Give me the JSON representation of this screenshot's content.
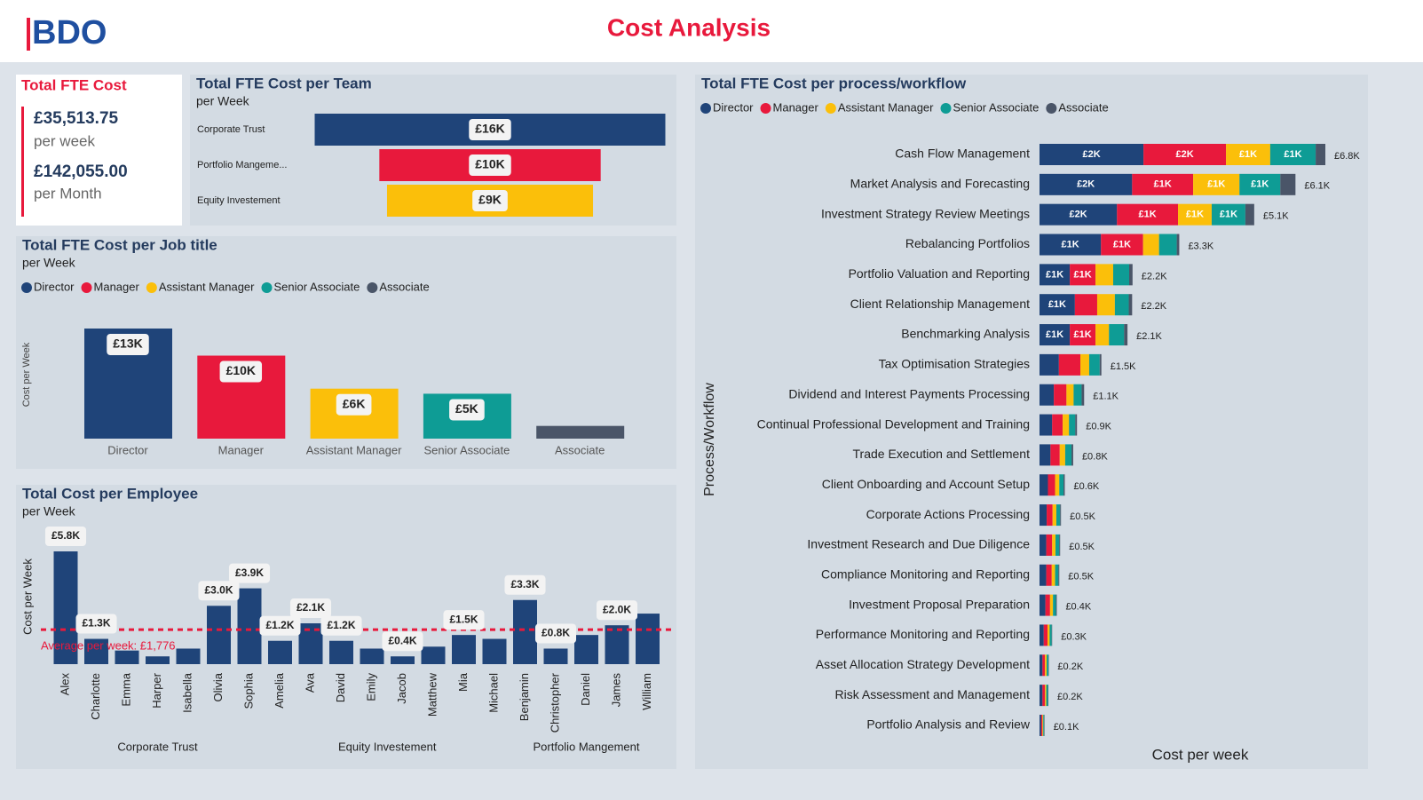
{
  "header": {
    "logo": "BDO",
    "title": "Cost Analysis"
  },
  "kpi": {
    "title": "Total FTE Cost",
    "week_value": "£35,513.75",
    "week_label": "per week",
    "month_value": "£142,055.00",
    "month_label": "per Month"
  },
  "chart_data": [
    {
      "type": "funnel",
      "title": "Total FTE Cost per Team",
      "subtitle": "per Week",
      "categories": [
        "Corporate Trust",
        "Portfolio Mangeme...",
        "Equity Investement"
      ],
      "values": [
        16000,
        10100,
        9400
      ],
      "value_labels": [
        "£16K",
        "£10K",
        "£9K"
      ],
      "colors": [
        "#1f4479",
        "#e8193c",
        "#fbbf0a"
      ]
    },
    {
      "type": "column",
      "title": "Total FTE Cost per Job title",
      "subtitle": "per Week",
      "y_label": "Cost per Week",
      "categories": [
        "Director",
        "Manager",
        "Assistant Manager",
        "Senior Associate",
        "Associate"
      ],
      "values": [
        13000,
        9800,
        5900,
        5300,
        1500
      ],
      "value_labels": [
        "£13K",
        "£10K",
        "£6K",
        "£5K",
        null
      ],
      "colors": [
        "#1f4479",
        "#e8193c",
        "#fbbf0a",
        "#0e9c95",
        "#4a5568"
      ]
    },
    {
      "type": "grouped_column",
      "title": "Total Cost per Employee",
      "subtitle": "per Week",
      "y_label": "Cost per Week",
      "color": "#1f4479",
      "average": {
        "value": 1776,
        "label": "Average per week: £1,776",
        "color": "#e8193c"
      },
      "groups": [
        {
          "name": "Corporate Trust",
          "categories": [
            "Alex",
            "Charlotte",
            "Emma",
            "Harper",
            "Isabella",
            "Olivia",
            "Sophia"
          ],
          "values": [
            5800,
            1300,
            700,
            400,
            800,
            3000,
            3900
          ],
          "value_labels": [
            "£5.8K",
            "£1.3K",
            null,
            null,
            null,
            "£3.0K",
            "£3.9K"
          ]
        },
        {
          "name": "Equity Investement",
          "categories": [
            "Amelia",
            "Ava",
            "David",
            "Emily",
            "Jacob",
            "Matthew",
            "Mia",
            "Michael"
          ],
          "values": [
            1200,
            2100,
            1200,
            800,
            400,
            900,
            1500,
            1300
          ],
          "value_labels": [
            "£1.2K",
            "£2.1K",
            "£1.2K",
            null,
            "£0.4K",
            null,
            "£1.5K",
            null
          ]
        },
        {
          "name": "Portfolio Mangement",
          "categories": [
            "Benjamin",
            "Christopher",
            "Daniel",
            "James",
            "William"
          ],
          "values": [
            3300,
            800,
            1500,
            2000,
            2600
          ],
          "value_labels": [
            "£3.3K",
            "£0.8K",
            null,
            "£2.0K",
            null
          ]
        }
      ]
    },
    {
      "type": "stacked_hbar",
      "title": "Total FTE Cost per process/workflow",
      "y_label": "Process/Workflow",
      "x_label": "Cost per week",
      "categories": [
        "Cash Flow Management",
        "Market Analysis and Forecasting",
        "Investment Strategy Review Meetings",
        "Rebalancing Portfolios",
        "Portfolio Valuation and Reporting",
        "Client Relationship Management",
        "Benchmarking Analysis",
        "Tax Optimisation Strategies",
        "Dividend and Interest Payments Processing",
        "Continual Professional Development and Training",
        "Trade Execution and Settlement",
        "Client Onboarding and Account Setup",
        "Corporate Actions Processing",
        "Investment Research and Due Diligence",
        "Compliance Monitoring and Reporting",
        "Investment Proposal Preparation",
        "Performance Monitoring and Reporting",
        "Asset Allocation Strategy Development",
        "Risk Assessment and Management",
        "Portfolio Analysis and Review"
      ],
      "total_labels": [
        "£6.8K",
        "£6.1K",
        "£5.1K",
        "£3.3K",
        "£2.2K",
        "£2.2K",
        "£2.1K",
        "£1.5K",
        "£1.1K",
        "£0.9K",
        "£0.8K",
        "£0.6K",
        "£0.5K",
        "£0.5K",
        "£0.5K",
        "£0.4K",
        "£0.3K",
        "£0.2K",
        "£0.2K",
        "£0.1K"
      ],
      "series": [
        {
          "name": "Director",
          "color": "#1f4479",
          "values": [
            2470,
            2200,
            1840,
            1460,
            720,
            840,
            720,
            460,
            340,
            300,
            260,
            200,
            170,
            160,
            160,
            140,
            100,
            70,
            70,
            40
          ],
          "value_labels": [
            "£2K",
            "£2K",
            "£2K",
            "£1K",
            "£1K",
            "£1K",
            "£1K",
            null,
            null,
            null,
            null,
            null,
            null,
            null,
            null,
            null,
            null,
            null,
            null,
            null
          ]
        },
        {
          "name": "Manager",
          "color": "#e8193c",
          "values": [
            1960,
            1450,
            1450,
            1000,
            610,
            530,
            610,
            510,
            300,
            250,
            220,
            170,
            140,
            140,
            130,
            110,
            90,
            60,
            60,
            30
          ],
          "value_labels": [
            "£2K",
            "£1K",
            "£1K",
            "£1K",
            "£1K",
            null,
            "£1K",
            null,
            null,
            null,
            null,
            null,
            null,
            null,
            null,
            null,
            null,
            null,
            null,
            null
          ]
        },
        {
          "name": "Assistant Manager",
          "color": "#fbbf0a",
          "values": [
            1050,
            1100,
            800,
            380,
            420,
            420,
            320,
            210,
            170,
            150,
            130,
            100,
            90,
            80,
            80,
            70,
            50,
            40,
            30,
            20
          ],
          "value_labels": [
            "£1K",
            "£1K",
            "£1K",
            null,
            null,
            null,
            null,
            null,
            null,
            null,
            null,
            null,
            null,
            null,
            null,
            null,
            null,
            null,
            null,
            null
          ]
        },
        {
          "name": "Senior Associate",
          "color": "#0e9c95",
          "values": [
            1080,
            970,
            800,
            420,
            380,
            330,
            360,
            250,
            190,
            150,
            150,
            100,
            90,
            90,
            80,
            70,
            50,
            40,
            40,
            20
          ],
          "value_labels": [
            "£1K",
            "£1K",
            "£1K",
            null,
            null,
            null,
            null,
            null,
            null,
            null,
            null,
            null,
            null,
            null,
            null,
            null,
            null,
            null,
            null,
            null
          ]
        },
        {
          "name": "Associate",
          "color": "#4a5568",
          "values": [
            230,
            360,
            210,
            60,
            80,
            80,
            80,
            40,
            60,
            40,
            40,
            30,
            20,
            20,
            20,
            20,
            10,
            10,
            10,
            10
          ],
          "value_labels": [
            null,
            null,
            null,
            null,
            null,
            null,
            null,
            null,
            null,
            null,
            null,
            null,
            null,
            null,
            null,
            null,
            null,
            null,
            null,
            null
          ]
        }
      ]
    }
  ]
}
